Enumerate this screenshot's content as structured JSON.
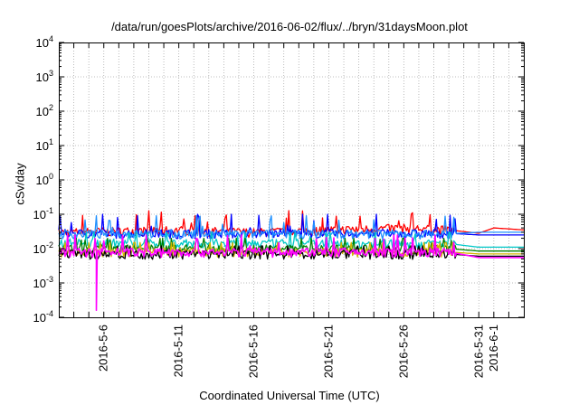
{
  "chart_data": {
    "type": "line",
    "title": "/data/run/goesPlots/archive/2016-06-02/flux/../bryn/31daysMoon.plot",
    "xlabel": "Coordinated Universal Time (UTC)",
    "ylabel": "cSv/day",
    "yscale": "log",
    "ylim": [
      0.0001,
      10000
    ],
    "xlim": [
      "2016-05-03",
      "2016-06-03"
    ],
    "grid": true,
    "y_tick_labels": [
      {
        "base": "10",
        "exp": "-4"
      },
      {
        "base": "10",
        "exp": "-3"
      },
      {
        "base": "10",
        "exp": "-2"
      },
      {
        "base": "10",
        "exp": "-1"
      },
      {
        "base": "10",
        "exp": "0"
      },
      {
        "base": "10",
        "exp": "1"
      },
      {
        "base": "10",
        "exp": "2"
      },
      {
        "base": "10",
        "exp": "3"
      },
      {
        "base": "10",
        "exp": "4"
      }
    ],
    "x_tick_labels": [
      "2016-5-6",
      "2016-5-11",
      "2016-5-16",
      "2016-5-21",
      "2016-5-26",
      "2016-5-31",
      "2016-6-1"
    ],
    "series": [
      {
        "color": "#ff0000",
        "values": [
          [
            "2016-05-03",
            0.03
          ],
          [
            "2016-05-11",
            0.035
          ],
          [
            "2016-05-16",
            0.03
          ],
          [
            "2016-05-21",
            0.035
          ],
          [
            "2016-05-26",
            0.04
          ],
          [
            "2016-05-29",
            0.035
          ],
          [
            "2016-05-31",
            0.028
          ],
          [
            "2016-06-01",
            0.04
          ],
          [
            "2016-06-03",
            0.035
          ]
        ],
        "peak": 0.13
      },
      {
        "color": "#0000ff",
        "values": [
          [
            "2016-05-03",
            0.028
          ],
          [
            "2016-05-29",
            0.028
          ],
          [
            "2016-05-31",
            0.025
          ],
          [
            "2016-06-03",
            0.025
          ]
        ],
        "peak": 0.1
      },
      {
        "color": "#1e90ff",
        "values": [
          [
            "2016-05-03",
            0.027
          ],
          [
            "2016-05-29",
            0.027
          ],
          [
            "2016-05-31",
            0.03
          ],
          [
            "2016-06-03",
            0.03
          ]
        ],
        "peak": 0.09
      },
      {
        "color": "#00c8c8",
        "values": [
          [
            "2016-05-03",
            0.015
          ],
          [
            "2016-05-29",
            0.014
          ],
          [
            "2016-05-31",
            0.011
          ],
          [
            "2016-06-03",
            0.011
          ]
        ],
        "peak": 0.03
      },
      {
        "color": "#008000",
        "values": [
          [
            "2016-05-03",
            0.01
          ],
          [
            "2016-05-29",
            0.01
          ],
          [
            "2016-05-31",
            0.0085
          ],
          [
            "2016-06-03",
            0.0085
          ]
        ],
        "peak": 0.02
      },
      {
        "color": "#d2b400",
        "values": [
          [
            "2016-05-03",
            0.008
          ],
          [
            "2016-05-29",
            0.008
          ],
          [
            "2016-05-31",
            0.007
          ],
          [
            "2016-06-03",
            0.007
          ]
        ],
        "peak": 0.015
      },
      {
        "color": "#000000",
        "values": [
          [
            "2016-05-03",
            0.007
          ],
          [
            "2016-05-29",
            0.007
          ],
          [
            "2016-05-31",
            0.006
          ],
          [
            "2016-06-03",
            0.006
          ]
        ],
        "peak": 0.012
      },
      {
        "color": "#ff00ff",
        "values": [
          [
            "2016-05-03",
            0.008
          ],
          [
            "2016-05-05",
            0.008
          ],
          [
            "2016-05-05",
            0.00016
          ],
          [
            "2016-05-05",
            0.008
          ],
          [
            "2016-05-29",
            0.008
          ],
          [
            "2016-05-31",
            0.0055
          ],
          [
            "2016-06-03",
            0.0055
          ]
        ],
        "peak": 0.025
      }
    ]
  }
}
